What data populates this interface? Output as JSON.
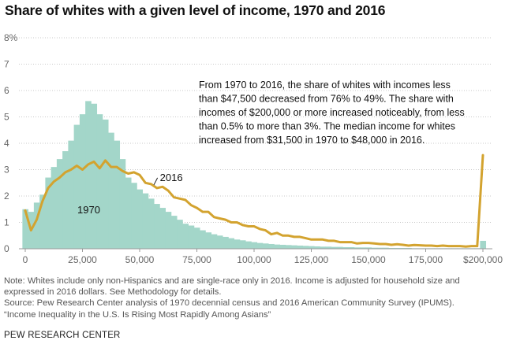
{
  "title": "Share of whites with a given level of income, 1970 and 2016",
  "annotation": [
    "From 1970 to 2016, the share of whites with incomes less",
    "than $47,500 decreased from 76% to 49%. The share with",
    "incomes of $200,000 or more increased noticeably, from less",
    "than 0.5% to more than 3%. The median income for whites",
    "increased from $31,500 in 1970 to $48,000 in 2016."
  ],
  "notes": [
    "Note: Whites include only non-Hispanics and are single-race only in 2016. Income is adjusted for household size and",
    "expressed in 2016 dollars. See Methodology for details.",
    "Source: Pew Research Center analysis of 1970 decennial census and 2016 American Community Survey (IPUMS).",
    "“Income Inequality in the U.S. Is Rising Most Rapidly Among Asians”"
  ],
  "credit": "PEW RESEARCH CENTER",
  "chart_data": {
    "type": "bar",
    "title": "Share of whites with a given level of income, 1970 and 2016",
    "xlabel": "",
    "ylabel": "",
    "xlim": [
      0,
      200000
    ],
    "ylim": [
      0,
      8
    ],
    "bin_width": 2500,
    "x_ticks": [
      {
        "value": 0,
        "label": "0"
      },
      {
        "value": 25000,
        "label": "25,000"
      },
      {
        "value": 50000,
        "label": "50,000"
      },
      {
        "value": 75000,
        "label": "75,000"
      },
      {
        "value": 100000,
        "label": "100,000"
      },
      {
        "value": 125000,
        "label": "125,000"
      },
      {
        "value": 150000,
        "label": "150,000"
      },
      {
        "value": 175000,
        "label": "175,000"
      },
      {
        "value": 200000,
        "label": "$200,000"
      }
    ],
    "y_ticks": [
      {
        "value": 0,
        "label": "0"
      },
      {
        "value": 1,
        "label": "1"
      },
      {
        "value": 2,
        "label": "2"
      },
      {
        "value": 3,
        "label": "3"
      },
      {
        "value": 4,
        "label": "4"
      },
      {
        "value": 5,
        "label": "5"
      },
      {
        "value": 6,
        "label": "6"
      },
      {
        "value": 7,
        "label": "7"
      },
      {
        "value": 8,
        "label": "8%"
      }
    ],
    "grid": true,
    "series": [
      {
        "name": "1970",
        "kind": "bar",
        "color": "#a3d6c9",
        "x": [
          0,
          2500,
          5000,
          7500,
          10000,
          12500,
          15000,
          17500,
          20000,
          22500,
          25000,
          27500,
          30000,
          32500,
          35000,
          37500,
          40000,
          42500,
          45000,
          47500,
          50000,
          52500,
          55000,
          57500,
          60000,
          62500,
          65000,
          67500,
          70000,
          72500,
          75000,
          77500,
          80000,
          82500,
          85000,
          87500,
          90000,
          92500,
          95000,
          97500,
          100000,
          102500,
          105000,
          107500,
          110000,
          112500,
          115000,
          117500,
          120000,
          122500,
          125000,
          127500,
          130000,
          132500,
          135000,
          137500,
          140000,
          142500,
          145000,
          147500,
          150000,
          152500,
          155000,
          157500,
          160000,
          162500,
          165000,
          167500,
          170000,
          172500,
          175000,
          177500,
          180000,
          182500,
          185000,
          187500,
          190000,
          192500,
          195000,
          197500,
          200000
        ],
        "values": [
          1.5,
          1.4,
          1.75,
          2.05,
          2.7,
          3.1,
          3.4,
          3.7,
          4.1,
          4.7,
          5.1,
          5.6,
          5.5,
          5.1,
          4.9,
          4.4,
          4.1,
          3.4,
          2.7,
          2.5,
          2.25,
          2.1,
          1.9,
          1.7,
          1.55,
          1.4,
          1.25,
          1.1,
          0.95,
          0.88,
          0.8,
          0.7,
          0.62,
          0.55,
          0.5,
          0.45,
          0.4,
          0.35,
          0.32,
          0.28,
          0.25,
          0.22,
          0.2,
          0.18,
          0.16,
          0.15,
          0.14,
          0.13,
          0.12,
          0.11,
          0.1,
          0.09,
          0.08,
          0.08,
          0.07,
          0.07,
          0.06,
          0.06,
          0.05,
          0.05,
          0.05,
          0.04,
          0.04,
          0.04,
          0.03,
          0.03,
          0.03,
          0.03,
          0.02,
          0.02,
          0.02,
          0.02,
          0.02,
          0.02,
          0.02,
          0.02,
          0.02,
          0.02,
          0.02,
          0.02,
          0.3
        ],
        "label": "1970"
      },
      {
        "name": "2016",
        "kind": "line",
        "color": "#d3a32f",
        "x": [
          0,
          2500,
          5000,
          7500,
          10000,
          12500,
          15000,
          17500,
          20000,
          22500,
          25000,
          27500,
          30000,
          32500,
          35000,
          37500,
          40000,
          42500,
          45000,
          47500,
          50000,
          52500,
          55000,
          57500,
          60000,
          62500,
          65000,
          67500,
          70000,
          72500,
          75000,
          77500,
          80000,
          82500,
          85000,
          87500,
          90000,
          92500,
          95000,
          97500,
          100000,
          102500,
          105000,
          107500,
          110000,
          112500,
          115000,
          117500,
          120000,
          122500,
          125000,
          127500,
          130000,
          132500,
          135000,
          137500,
          140000,
          142500,
          145000,
          147500,
          150000,
          152500,
          155000,
          157500,
          160000,
          162500,
          165000,
          167500,
          170000,
          172500,
          175000,
          177500,
          180000,
          182500,
          185000,
          187500,
          190000,
          192500,
          195000,
          197500,
          200000
        ],
        "values": [
          1.45,
          0.7,
          1.1,
          1.8,
          2.3,
          2.55,
          2.7,
          2.9,
          3.0,
          3.15,
          3.0,
          3.2,
          3.3,
          3.05,
          3.35,
          3.1,
          3.1,
          2.95,
          2.85,
          2.9,
          2.8,
          2.5,
          2.45,
          2.3,
          2.35,
          2.2,
          1.95,
          1.9,
          1.85,
          1.65,
          1.55,
          1.4,
          1.4,
          1.2,
          1.15,
          1.1,
          1.0,
          1.0,
          0.9,
          0.85,
          0.85,
          0.75,
          0.7,
          0.55,
          0.6,
          0.5,
          0.5,
          0.45,
          0.45,
          0.4,
          0.35,
          0.35,
          0.35,
          0.3,
          0.3,
          0.25,
          0.25,
          0.25,
          0.2,
          0.22,
          0.22,
          0.2,
          0.18,
          0.18,
          0.15,
          0.17,
          0.15,
          0.12,
          0.14,
          0.13,
          0.12,
          0.12,
          0.1,
          0.12,
          0.1,
          0.1,
          0.1,
          0.08,
          0.1,
          0.1,
          3.55
        ],
        "label": "2016"
      }
    ]
  }
}
